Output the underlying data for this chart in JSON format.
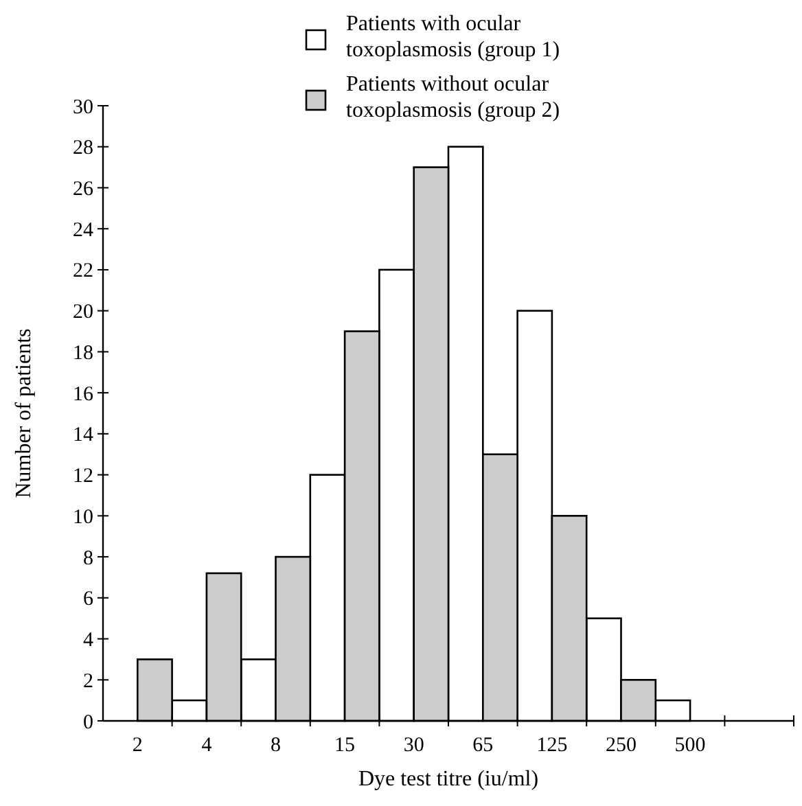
{
  "chart_data": {
    "type": "bar",
    "xlabel": "Dye test titre (iu/ml)",
    "ylabel": "Number of patients",
    "categories": [
      "2",
      "4",
      "8",
      "15",
      "30",
      "65",
      "125",
      "250",
      "500",
      null
    ],
    "series": [
      {
        "name": "Patients with ocular toxoplasmosis (group 1)",
        "color": "#ffffff",
        "values": [
          null,
          1,
          3,
          12,
          22,
          28,
          20,
          5,
          1,
          null
        ]
      },
      {
        "name": "Patients without ocular toxoplasmosis (group 2)",
        "color": "#cccccc",
        "values": [
          3,
          7.2,
          8,
          19,
          27,
          13,
          10,
          2,
          null,
          null
        ]
      }
    ],
    "ylim": [
      0,
      30
    ],
    "yticks": [
      0,
      2,
      4,
      6,
      8,
      10,
      12,
      14,
      16,
      18,
      20,
      22,
      24,
      26,
      28,
      30
    ],
    "grid": false,
    "legend": "top"
  }
}
